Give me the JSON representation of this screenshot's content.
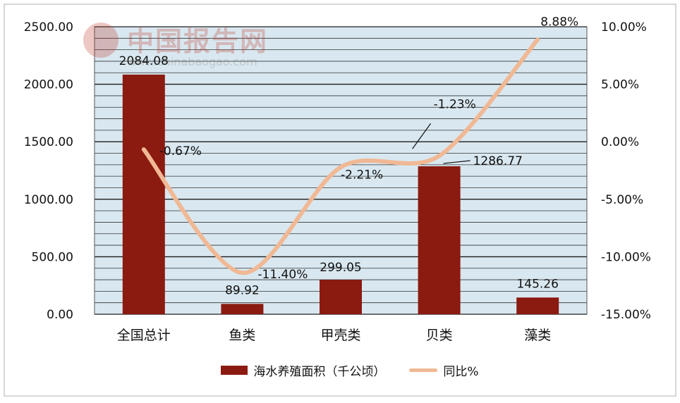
{
  "watermark": {
    "cn": "中国报告网",
    "url": "www.chinabaogao.com"
  },
  "legend": {
    "bar_label": "海水养殖面积（千公顷）",
    "line_label": "同比%"
  },
  "colors": {
    "bar": "#8B1A10",
    "line": "#F0B894",
    "grid": "#2a2a2a",
    "plot_bg": "#D9E8F0"
  },
  "chart_data": {
    "type": "bar",
    "categories": [
      "全国总计",
      "鱼类",
      "甲壳类",
      "贝类",
      "藻类"
    ],
    "series": [
      {
        "name": "海水养殖面积（千公顷）",
        "type": "bar",
        "axis": "left",
        "values": [
          2084.08,
          89.92,
          299.05,
          1286.77,
          145.26
        ],
        "labels": [
          "2084.08",
          "89.92",
          "299.05",
          "1286.77",
          "145.26"
        ]
      },
      {
        "name": "同比%",
        "type": "line",
        "axis": "right",
        "values": [
          -0.67,
          -11.4,
          -2.21,
          -1.23,
          8.88
        ],
        "labels": [
          "-0.67%",
          "-11.40%",
          "-2.21%",
          "-1.23%",
          "8.88%"
        ]
      }
    ],
    "y_left": {
      "range": [
        0,
        2500
      ],
      "ticks": [
        0,
        500,
        1000,
        1500,
        2000,
        2500
      ],
      "tick_labels": [
        "0.00",
        "500.00",
        "1000.00",
        "1500.00",
        "2000.00",
        "2500.00"
      ]
    },
    "y_right": {
      "range": [
        -15,
        10
      ],
      "ticks": [
        -15,
        -10,
        -5,
        0,
        5,
        10
      ],
      "tick_labels": [
        "-15.00%",
        "-10.00%",
        "-5.00%",
        "0.00%",
        "5.00%",
        "10.00%"
      ]
    },
    "grid": true,
    "legend_position": "bottom"
  }
}
